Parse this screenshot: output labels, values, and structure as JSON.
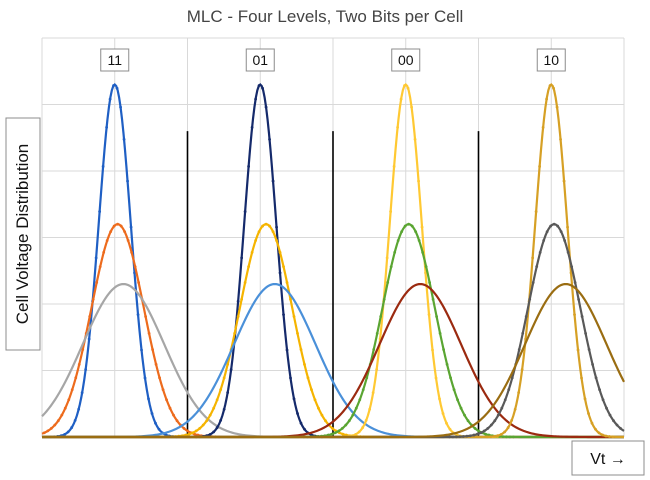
{
  "chart_data": {
    "type": "line",
    "title": "MLC - Four Levels, Two Bits per Cell",
    "ylabel": "Cell Voltage Distribution",
    "xlabel": "Vt →",
    "xlim": [
      0,
      20
    ],
    "ylim": [
      0,
      6
    ],
    "grid": true,
    "legend": "none",
    "level_labels": [
      {
        "text": "11",
        "x": 2.5
      },
      {
        "text": "01",
        "x": 7.5
      },
      {
        "text": "00",
        "x": 12.5
      },
      {
        "text": "10",
        "x": 17.5
      }
    ],
    "separators": [
      5,
      10,
      15
    ],
    "series": [
      {
        "color": "#1f5fc4",
        "mean": 2.5,
        "sd": 0.55,
        "peak": 5.3,
        "markers": true
      },
      {
        "color": "#ed6b1d",
        "mean": 2.6,
        "sd": 0.9,
        "peak": 3.2,
        "markers": true
      },
      {
        "color": "#a6a6a6",
        "mean": 2.8,
        "sd": 1.4,
        "peak": 2.3,
        "markers": false
      },
      {
        "color": "#152a6b",
        "mean": 7.5,
        "sd": 0.55,
        "peak": 5.3,
        "markers": true
      },
      {
        "color": "#f5b400",
        "mean": 7.7,
        "sd": 0.9,
        "peak": 3.2,
        "markers": true
      },
      {
        "color": "#4a90d9",
        "mean": 8.0,
        "sd": 1.4,
        "peak": 2.3,
        "markers": false
      },
      {
        "color": "#ffc933",
        "mean": 12.5,
        "sd": 0.55,
        "peak": 5.3,
        "markers": true
      },
      {
        "color": "#5aa532",
        "mean": 12.6,
        "sd": 0.9,
        "peak": 3.2,
        "markers": true
      },
      {
        "color": "#9b2a10",
        "mean": 13.0,
        "sd": 1.4,
        "peak": 2.3,
        "markers": false
      },
      {
        "color": "#d6a025",
        "mean": 17.5,
        "sd": 0.55,
        "peak": 5.3,
        "markers": true
      },
      {
        "color": "#595959",
        "mean": 17.6,
        "sd": 0.9,
        "peak": 3.2,
        "markers": true
      },
      {
        "color": "#9a6d12",
        "mean": 18.0,
        "sd": 1.4,
        "peak": 2.3,
        "markers": false
      }
    ]
  }
}
